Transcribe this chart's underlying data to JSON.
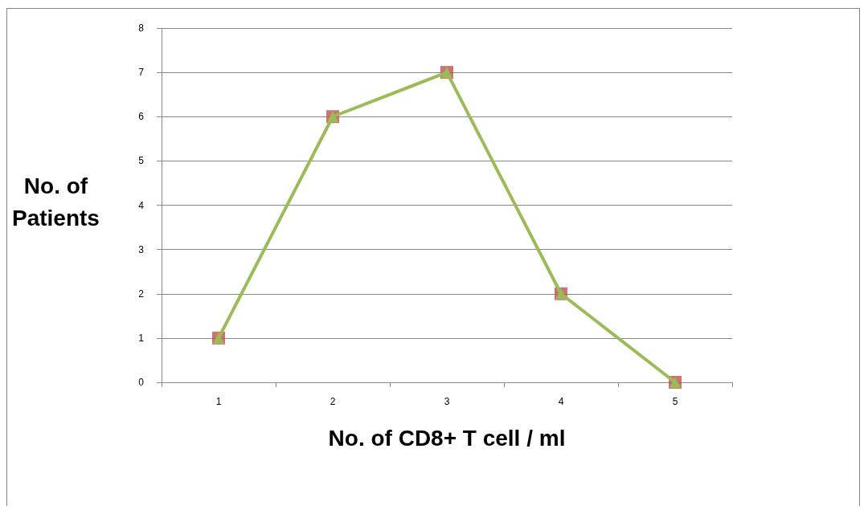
{
  "chart_data": {
    "type": "line",
    "xlabel": "No. of CD8+ T cell / ml",
    "ylabel": "No. of\nPatients",
    "categories": [
      "1",
      "2",
      "3",
      "4",
      "5"
    ],
    "series": [
      {
        "type": "scatter",
        "color": "#c0504d",
        "marker": "square",
        "values": [
          1,
          6,
          7,
          2,
          0
        ]
      },
      {
        "color": "#9bbb59",
        "marker": "triangle",
        "values": [
          1,
          6,
          7,
          2,
          0
        ]
      }
    ],
    "ylim": [
      0,
      8
    ],
    "yticks": [
      0,
      1,
      2,
      3,
      4,
      5,
      6,
      7,
      8
    ],
    "grid": "y"
  }
}
